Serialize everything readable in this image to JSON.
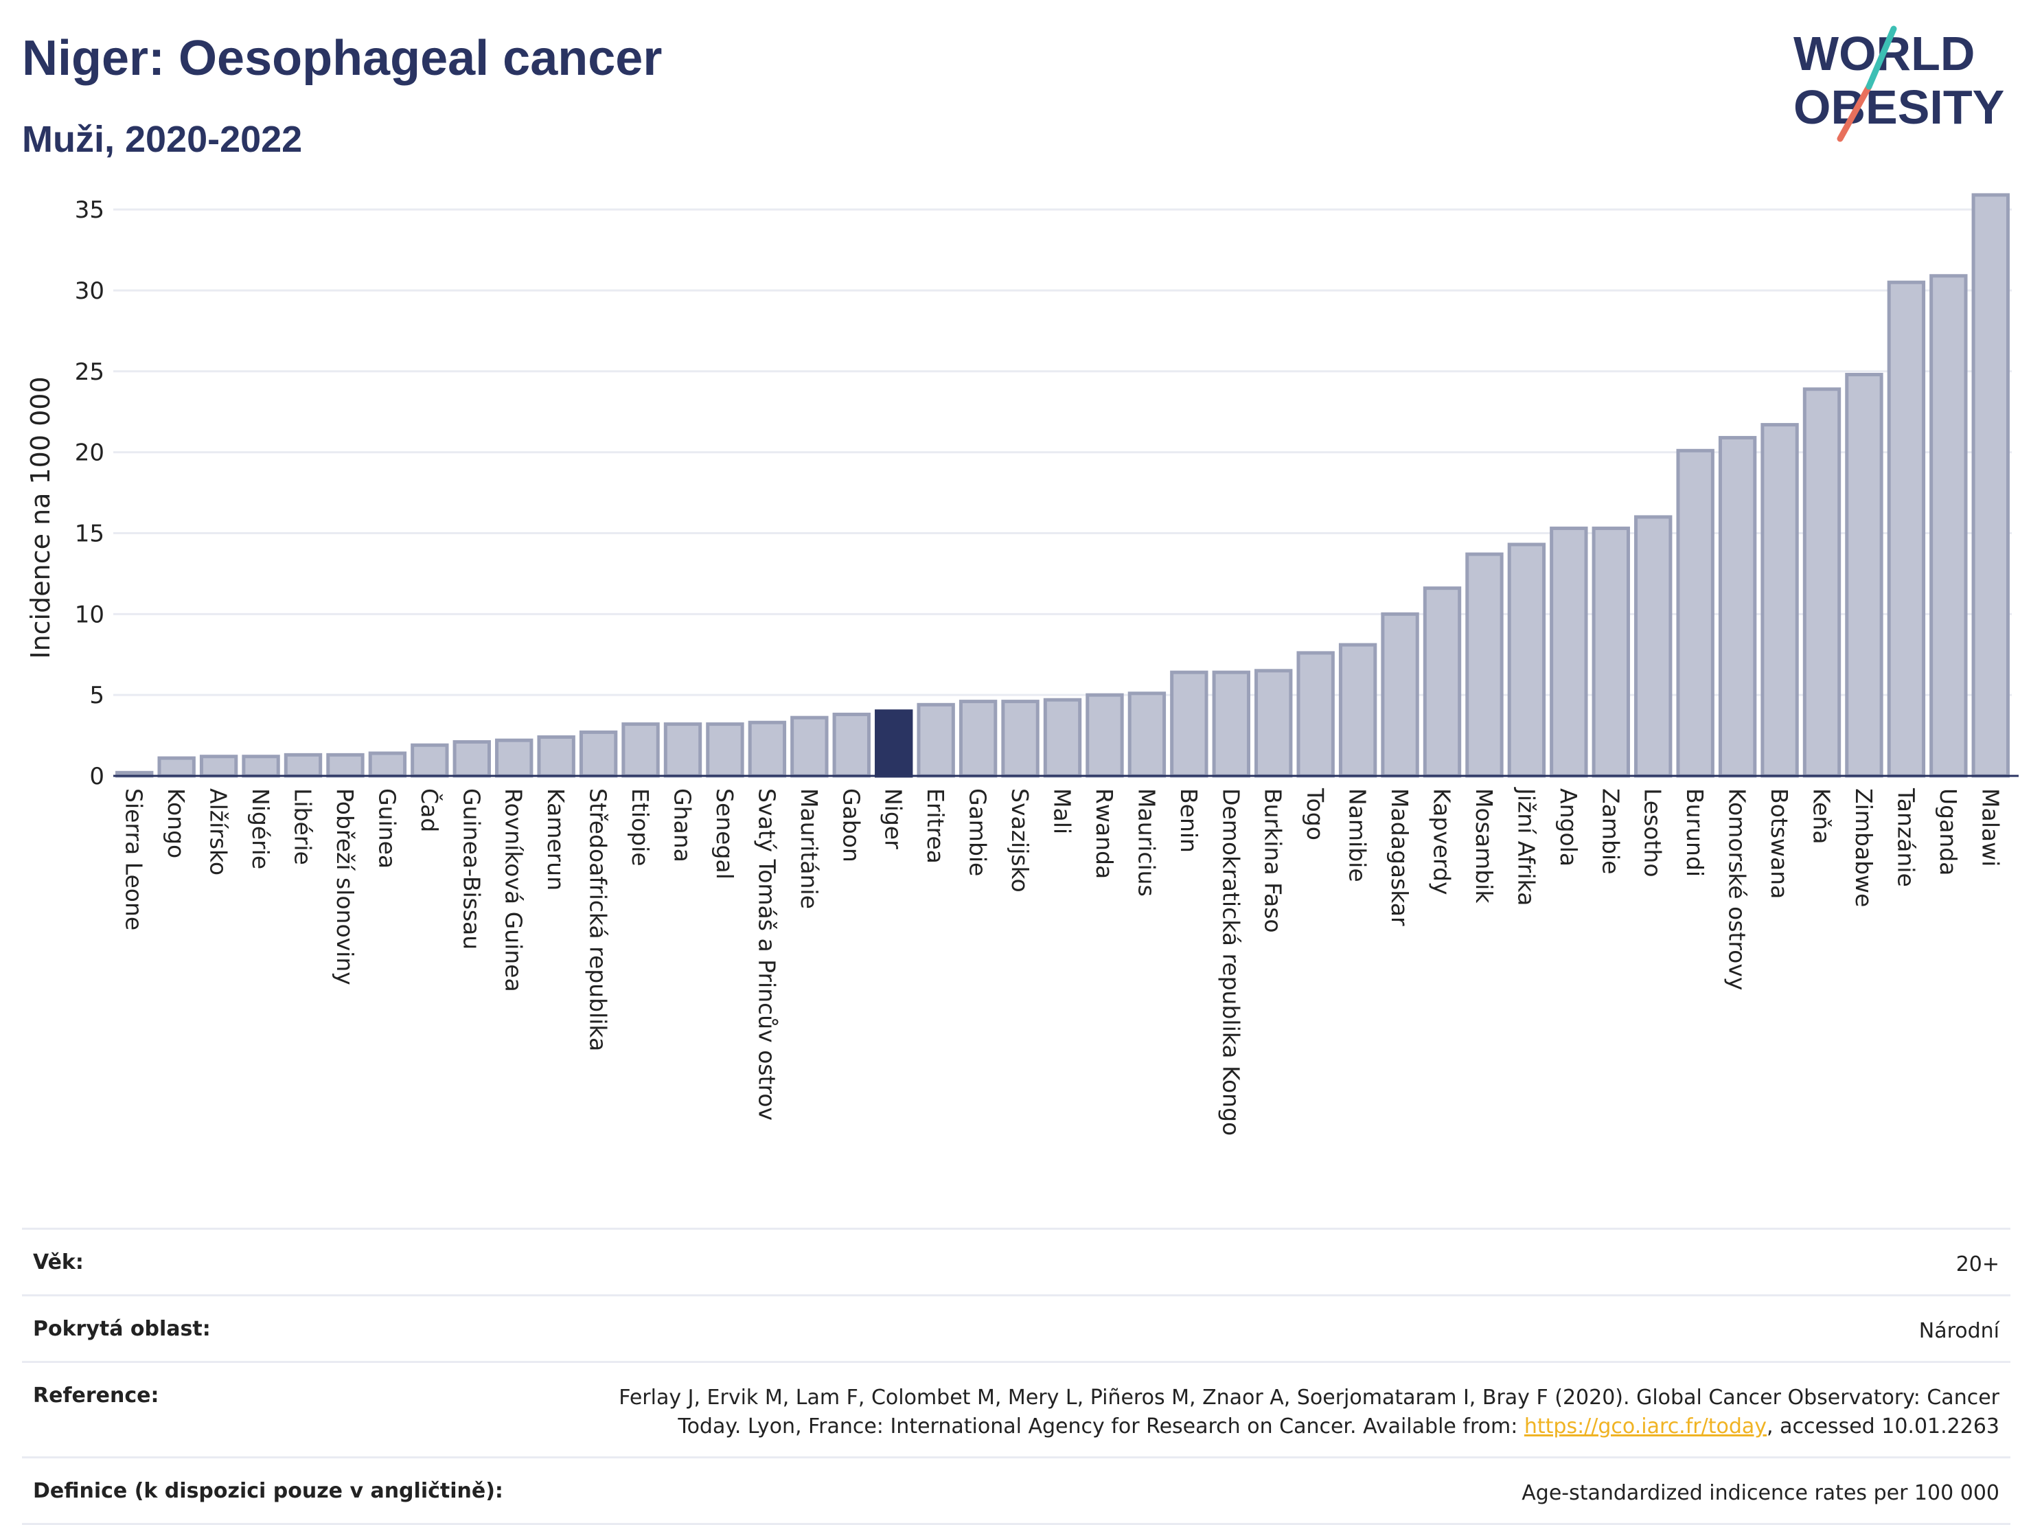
{
  "header": {
    "title": "Niger: Oesophageal cancer",
    "subtitle": "Muži, 2020-2022"
  },
  "logo": {
    "line1": "WORLD",
    "line2": "OBESITY"
  },
  "chart_data": {
    "type": "bar",
    "ylabel": "Incidence na 100 000",
    "xlabel": "",
    "ylim": [
      0,
      37
    ],
    "yticks": [
      0,
      5,
      10,
      15,
      20,
      25,
      30,
      35
    ],
    "grid": true,
    "highlight": "Niger",
    "categories": [
      "Sierra Leone",
      "Kongo",
      "Alžírsko",
      "Nigérie",
      "Libérie",
      "Pobřeží slonoviny",
      "Guinea",
      "Čad",
      "Guinea-Bissau",
      "Rovníková Guinea",
      "Kamerun",
      "Středoafrická republika",
      "Etiopie",
      "Ghana",
      "Senegal",
      "Svatý Tomáš a Princův ostrov",
      "Mauritánie",
      "Gabon",
      "Niger",
      "Eritrea",
      "Gambie",
      "Svazijsko",
      "Mali",
      "Rwanda",
      "Mauricius",
      "Benin",
      "Demokratická republika Kongo",
      "Burkina Faso",
      "Togo",
      "Namibie",
      "Madagaskar",
      "Kapverdy",
      "Mosambik",
      "Jižní Afrika",
      "Angola",
      "Zambie",
      "Lesotho",
      "Burundi",
      "Komorské ostrovy",
      "Botswana",
      "Keňa",
      "Zimbabwe",
      "Tanzánie",
      "Uganda",
      "Malawi"
    ],
    "values": [
      0.2,
      1.1,
      1.2,
      1.2,
      1.3,
      1.3,
      1.4,
      1.9,
      2.1,
      2.2,
      2.4,
      2.7,
      3.2,
      3.2,
      3.2,
      3.3,
      3.6,
      3.8,
      4.0,
      4.4,
      4.6,
      4.6,
      4.7,
      5.0,
      5.1,
      6.4,
      6.4,
      6.5,
      7.6,
      8.1,
      10.0,
      11.6,
      13.7,
      14.3,
      15.3,
      15.3,
      16.0,
      20.1,
      20.9,
      21.7,
      23.9,
      24.8,
      30.5,
      30.9,
      35.9
    ],
    "colors": {
      "bar": "#bfc3d3",
      "bar_edge": "#9aa0b8",
      "highlight": "#2a3462",
      "grid": "#e9ebf2",
      "axis": "#2a3462"
    }
  },
  "info": {
    "age_label": "Věk:",
    "age_value": "20+",
    "area_label": "Pokrytá oblast:",
    "area_value": "Národní",
    "reference_label": "Reference:",
    "reference_line1": "Ferlay J, Ervik M, Lam F, Colombet M, Mery L, Piñeros M, Znaor A, Soerjomataram I, Bray F (2020). Global Cancer Observatory: Cancer",
    "reference_line2_prefix": "Today. Lyon, France: International Agency for Research on Cancer. Available from: ",
    "reference_link": "https://gco.iarc.fr/today",
    "reference_line2_suffix": ", accessed 10.01.2263",
    "definition_label": "Definice (k dispozici pouze v angličtině):",
    "definition_value": "Age-standardized indicence rates per 100 000"
  }
}
